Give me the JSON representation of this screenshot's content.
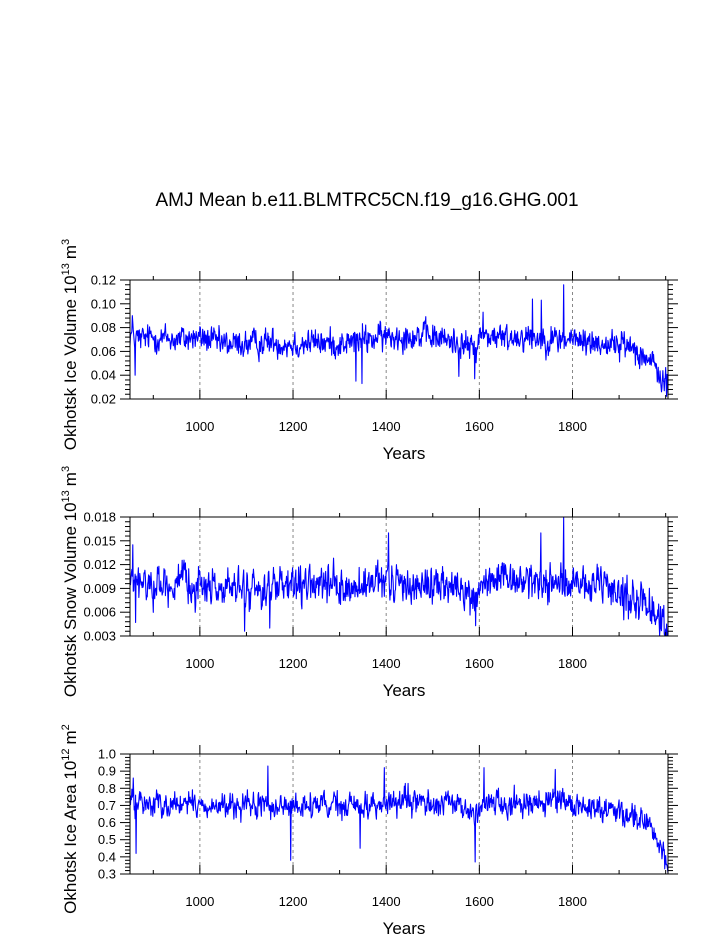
{
  "title": "AMJ Mean b.e11.BLMTRC5CN.f19_g16.GHG.001",
  "colors": {
    "series": "#0000ff",
    "axis": "#000000",
    "gridline": "#888888"
  },
  "chart_data": [
    {
      "type": "line",
      "title": "AMJ Mean b.e11.BLMTRC5CN.f19_g16.GHG.001",
      "xlabel": "Years",
      "ylabel": "Okhotsk Ice Volume 10",
      "ylabel_exp": "13",
      "ylabel_unit": "m",
      "ylabel_unit_exp": "3",
      "xlim": [
        850,
        2005
      ],
      "ylim": [
        0.02,
        0.12
      ],
      "xticks": [
        1000,
        1200,
        1400,
        1600,
        1800
      ],
      "yticks": [
        "0.02",
        "0.04",
        "0.06",
        "0.08",
        "0.10",
        "0.12"
      ],
      "grid_x": true,
      "series": [
        {
          "x_start": 850,
          "x_end": 2005,
          "anchors": [
            [
              850,
              0.075
            ],
            [
              870,
              0.07
            ],
            [
              900,
              0.072
            ],
            [
              950,
              0.07
            ],
            [
              1000,
              0.072
            ],
            [
              1050,
              0.066
            ],
            [
              1100,
              0.066
            ],
            [
              1150,
              0.068
            ],
            [
              1200,
              0.066
            ],
            [
              1250,
              0.068
            ],
            [
              1300,
              0.066
            ],
            [
              1350,
              0.07
            ],
            [
              1400,
              0.072
            ],
            [
              1450,
              0.074
            ],
            [
              1500,
              0.072
            ],
            [
              1550,
              0.068
            ],
            [
              1590,
              0.062
            ],
            [
              1605,
              0.074
            ],
            [
              1650,
              0.071
            ],
            [
              1700,
              0.073
            ],
            [
              1750,
              0.07
            ],
            [
              1800,
              0.07
            ],
            [
              1850,
              0.067
            ],
            [
              1900,
              0.066
            ],
            [
              1930,
              0.064
            ],
            [
              1950,
              0.058
            ],
            [
              1975,
              0.047
            ],
            [
              2005,
              0.03
            ]
          ],
          "noise": 0.0095,
          "extremes": [
            [
              855,
              0.09
            ],
            [
              861,
              0.04
            ],
            [
              1335,
              0.035
            ],
            [
              1348,
              0.033
            ],
            [
              1556,
              0.039
            ],
            [
              1590,
              0.037
            ],
            [
              1608,
              0.093
            ],
            [
              1714,
              0.104
            ],
            [
              1733,
              0.103
            ],
            [
              1781,
              0.116
            ],
            [
              1997,
              0.027
            ]
          ]
        }
      ]
    },
    {
      "type": "line",
      "xlabel": "Years",
      "ylabel": "Okhotsk Snow Volume 10",
      "ylabel_exp": "13",
      "ylabel_unit": "m",
      "ylabel_unit_exp": "3",
      "xlim": [
        850,
        2005
      ],
      "ylim": [
        0.003,
        0.018
      ],
      "xticks": [
        1000,
        1200,
        1400,
        1600,
        1800
      ],
      "yticks": [
        "0.003",
        "0.006",
        "0.009",
        "0.012",
        "0.015",
        "0.018"
      ],
      "grid_x": true,
      "series": [
        {
          "x_start": 850,
          "x_end": 2005,
          "anchors": [
            [
              850,
              0.0095
            ],
            [
              900,
              0.0095
            ],
            [
              950,
              0.0095
            ],
            [
              1000,
              0.0095
            ],
            [
              1050,
              0.009
            ],
            [
              1100,
              0.0088
            ],
            [
              1150,
              0.009
            ],
            [
              1200,
              0.009
            ],
            [
              1250,
              0.0095
            ],
            [
              1300,
              0.009
            ],
            [
              1350,
              0.009
            ],
            [
              1400,
              0.0098
            ],
            [
              1450,
              0.0095
            ],
            [
              1500,
              0.0095
            ],
            [
              1550,
              0.009
            ],
            [
              1590,
              0.0075
            ],
            [
              1605,
              0.0098
            ],
            [
              1650,
              0.0098
            ],
            [
              1700,
              0.01
            ],
            [
              1750,
              0.0098
            ],
            [
              1800,
              0.0095
            ],
            [
              1850,
              0.009
            ],
            [
              1900,
              0.0085
            ],
            [
              1930,
              0.008
            ],
            [
              1960,
              0.0068
            ],
            [
              1985,
              0.0055
            ],
            [
              2005,
              0.0035
            ]
          ],
          "noise": 0.0019,
          "extremes": [
            [
              856,
              0.0145
            ],
            [
              862,
              0.0047
            ],
            [
              1096,
              0.0036
            ],
            [
              1150,
              0.004
            ],
            [
              1405,
              0.016
            ],
            [
              1592,
              0.0043
            ],
            [
              1732,
              0.016
            ],
            [
              1781,
              0.018
            ],
            [
              2003,
              0.003
            ]
          ]
        }
      ]
    },
    {
      "type": "line",
      "xlabel": "Years",
      "ylabel": "Okhotsk Ice Area 10",
      "ylabel_exp": "12",
      "ylabel_unit": "m",
      "ylabel_unit_exp": "2",
      "xlim": [
        850,
        2005
      ],
      "ylim": [
        0.3,
        1.0
      ],
      "xticks": [
        1000,
        1200,
        1400,
        1600,
        1800
      ],
      "yticks": [
        "0.3",
        "0.4",
        "0.5",
        "0.6",
        "0.7",
        "0.8",
        "0.9",
        "1.0"
      ],
      "grid_x": true,
      "series": [
        {
          "x_start": 850,
          "x_end": 2005,
          "anchors": [
            [
              850,
              0.72
            ],
            [
              900,
              0.71
            ],
            [
              950,
              0.71
            ],
            [
              1000,
              0.7
            ],
            [
              1050,
              0.69
            ],
            [
              1100,
              0.69
            ],
            [
              1150,
              0.7
            ],
            [
              1200,
              0.69
            ],
            [
              1250,
              0.7
            ],
            [
              1300,
              0.69
            ],
            [
              1350,
              0.7
            ],
            [
              1400,
              0.71
            ],
            [
              1450,
              0.72
            ],
            [
              1500,
              0.71
            ],
            [
              1550,
              0.7
            ],
            [
              1590,
              0.65
            ],
            [
              1605,
              0.72
            ],
            [
              1650,
              0.71
            ],
            [
              1700,
              0.72
            ],
            [
              1750,
              0.72
            ],
            [
              1800,
              0.7
            ],
            [
              1850,
              0.69
            ],
            [
              1900,
              0.67
            ],
            [
              1935,
              0.65
            ],
            [
              1960,
              0.6
            ],
            [
              1980,
              0.5
            ],
            [
              2005,
              0.36
            ]
          ],
          "noise": 0.06,
          "extremes": [
            [
              857,
              0.86
            ],
            [
              863,
              0.42
            ],
            [
              1146,
              0.93
            ],
            [
              1195,
              0.38
            ],
            [
              1344,
              0.45
            ],
            [
              1396,
              0.92
            ],
            [
              1591,
              0.37
            ],
            [
              1610,
              0.92
            ],
            [
              1763,
              0.91
            ],
            [
              1998,
              0.33
            ]
          ]
        }
      ]
    }
  ]
}
